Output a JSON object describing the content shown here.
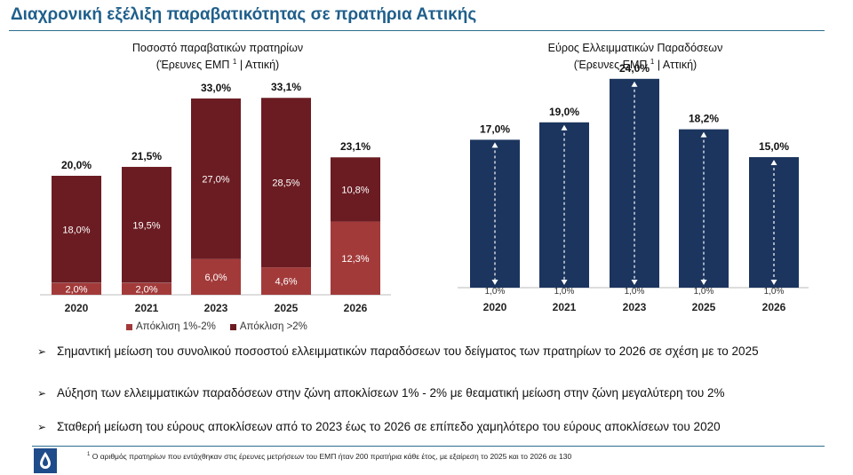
{
  "page": {
    "title": "Διαχρονική εξέλιξη παραβατικότητας σε πρατήρια Αττικής"
  },
  "chart_data": [
    {
      "type": "bar",
      "stacked": true,
      "title": "Ποσοστό παραβατικών πρατηρίων",
      "subtitle": "(Έρευνες ΕΜΠ",
      "subtitle_sup": "1",
      "subtitle_end": "| Αττική)",
      "categories": [
        "2020",
        "2021",
        "2023",
        "2025",
        "2026"
      ],
      "series": [
        {
          "name": "Απόκλιση 1%-2%",
          "values": [
            2.0,
            2.0,
            6.0,
            4.6,
            12.3
          ],
          "labels": [
            "2,0%",
            "2,0%",
            "6,0%",
            "4,6%",
            "12,3%"
          ],
          "color": "#a33a3a"
        },
        {
          "name": "Απόκλιση >2%",
          "values": [
            18.0,
            19.5,
            27.0,
            28.5,
            10.8
          ],
          "labels": [
            "18,0%",
            "19,5%",
            "27,0%",
            "28,5%",
            "10,8%"
          ],
          "color": "#6b1c22"
        }
      ],
      "totals": [
        20.0,
        21.5,
        33.0,
        33.1,
        23.1
      ],
      "total_labels": [
        "20,0%",
        "21,5%",
        "33,0%",
        "33,1%",
        "23,1%"
      ],
      "legend_position": "bottom",
      "grid": false
    },
    {
      "type": "bar",
      "title": "Εύρος Ελλειμματικών Παραδόσεων",
      "subtitle": "(Έρευνες ΕΜΠ",
      "subtitle_sup": "1",
      "subtitle_end": "| Αττική)",
      "categories": [
        "2020",
        "2021",
        "2023",
        "2025",
        "2026"
      ],
      "min_values": [
        1.0,
        1.0,
        1.0,
        1.0,
        1.0
      ],
      "min_labels": [
        "1,0%",
        "1,0%",
        "1,0%",
        "1,0%",
        "1,0%"
      ],
      "max_values": [
        17.0,
        19.0,
        24.0,
        18.2,
        15.0
      ],
      "max_labels": [
        "17,0%",
        "19,0%",
        "24,0%",
        "18,2%",
        "15,0%"
      ],
      "color": "#1b355e",
      "grid": false
    }
  ],
  "bullets": [
    "Σημαντική μείωση του συνολικού ποσοστού ελλειμματικών παραδόσεων του δείγματος των πρατηρίων το 2026 σε σχέση με το 2025",
    "Αύξηση των ελλειμματικών παραδόσεων στην ζώνη αποκλίσεων 1% - 2% με θεαματική μείωση στην ζώνη μεγαλύτερη του 2%",
    "Σταθερή μείωση του εύρους αποκλίσεων από το 2023 έως το 2026 σε επίπεδο χαμηλότερο του εύρους αποκλίσεων του 2020"
  ],
  "bullet_marker": "➢",
  "footnote": {
    "sup": "1",
    "text": "Ο αριθμός πρατηρίων που εντάχθηκαν στις έρευνες μετρήσεων του ΕΜΠ ήταν 200 πρατήρια κάθε έτος, με εξαίρεση  το 2025 και το 2026 σε 130"
  },
  "logo_icon": "drop-logo-icon"
}
